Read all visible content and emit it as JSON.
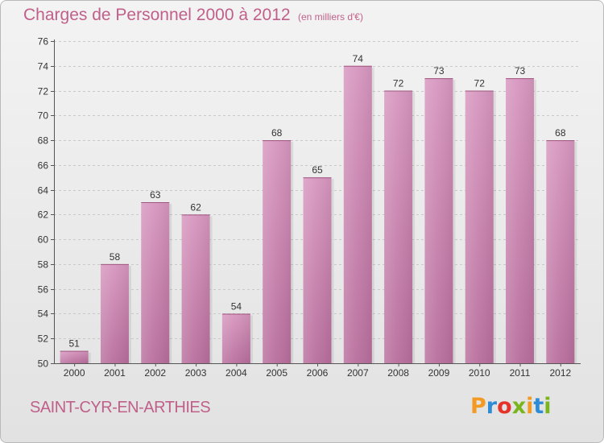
{
  "header": {
    "title": "Charges de Personnel 2000 à 2012",
    "subtitle": "(en milliers d'€)"
  },
  "footer": {
    "place": "SAINT-CYR-EN-ARTHIES",
    "logo_letters": [
      "P",
      "r",
      "o",
      "x",
      "i",
      "t",
      "i"
    ],
    "logo_colors": [
      "#f29a23",
      "#2e8bd6",
      "#e6332a",
      "#7ab51d",
      "#f29a23",
      "#2e8bd6",
      "#7ab51d"
    ]
  },
  "chart_data": {
    "type": "bar",
    "categories": [
      "2000",
      "2001",
      "2002",
      "2003",
      "2004",
      "2005",
      "2006",
      "2007",
      "2008",
      "2009",
      "2010",
      "2011",
      "2012"
    ],
    "values": [
      51,
      58,
      63,
      62,
      54,
      68,
      65,
      74,
      72,
      73,
      72,
      73,
      68
    ],
    "data_labels": [
      "51",
      "58",
      "63",
      "62",
      "54",
      "68",
      "65",
      "74",
      "72",
      "73",
      "72",
      "73",
      "68"
    ],
    "yticks": [
      50,
      52,
      54,
      56,
      58,
      60,
      62,
      64,
      66,
      68,
      70,
      72,
      74,
      76
    ],
    "ylim": [
      50,
      76
    ],
    "grid": true,
    "bar_color": "#d796bf",
    "bar_color_dark": "#b86e9c"
  }
}
